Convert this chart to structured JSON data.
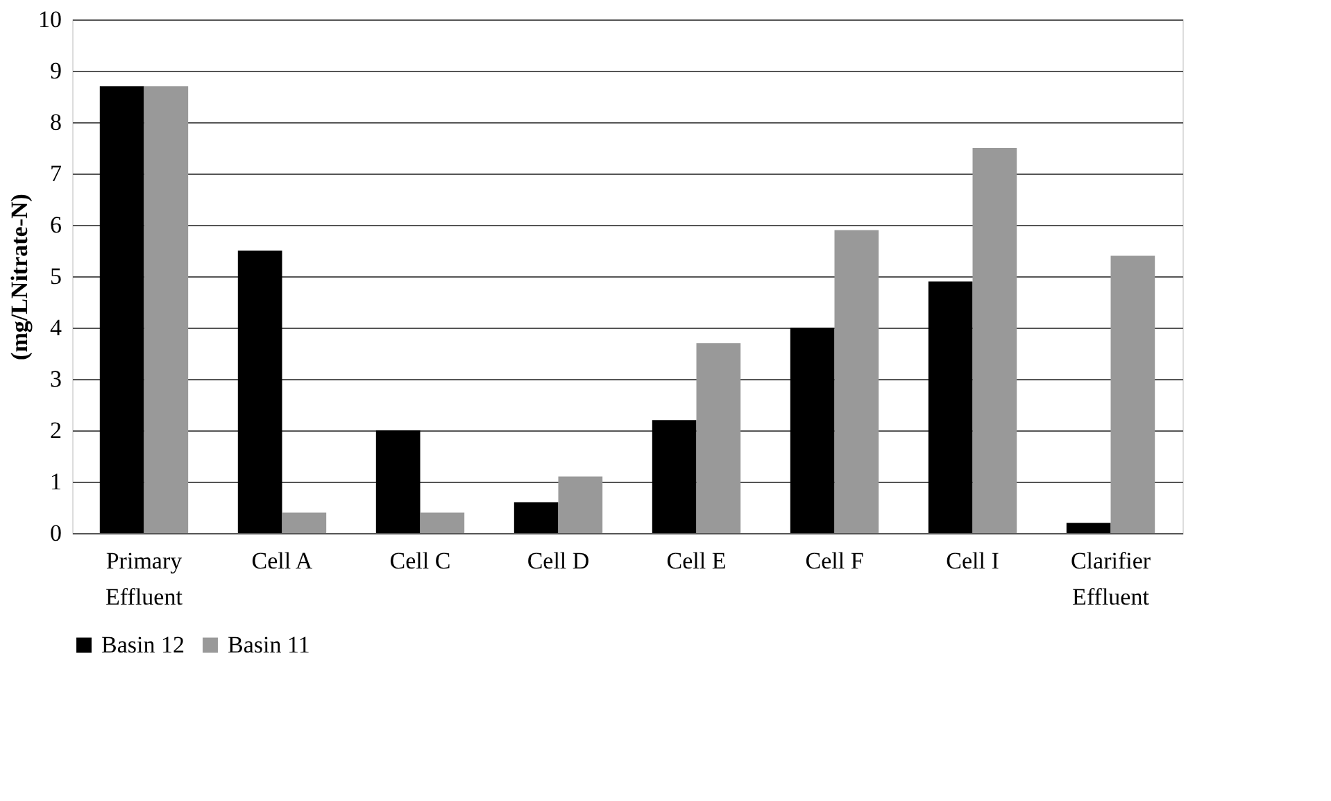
{
  "chart_data": {
    "type": "bar",
    "ylabel": "(mg/LNitrate-N)",
    "categories": [
      "Primary Effluent",
      "Cell A",
      "Cell C",
      "Cell D",
      "Cell E",
      "Cell F",
      "Cell I",
      "Clarifier Effluent"
    ],
    "series": [
      {
        "name": "Basin 12",
        "color": "#000000",
        "values": [
          8.7,
          5.5,
          2.0,
          0.6,
          2.2,
          4.0,
          4.9,
          0.2
        ]
      },
      {
        "name": "Basin 11",
        "color": "#999999",
        "values": [
          8.7,
          0.4,
          0.4,
          1.1,
          3.7,
          5.9,
          7.5,
          5.4
        ]
      }
    ],
    "ylim": [
      0,
      10
    ],
    "yticks": [
      0,
      1,
      2,
      3,
      4,
      5,
      6,
      7,
      8,
      9,
      10
    ],
    "grid": "y",
    "legend": "bottom"
  }
}
